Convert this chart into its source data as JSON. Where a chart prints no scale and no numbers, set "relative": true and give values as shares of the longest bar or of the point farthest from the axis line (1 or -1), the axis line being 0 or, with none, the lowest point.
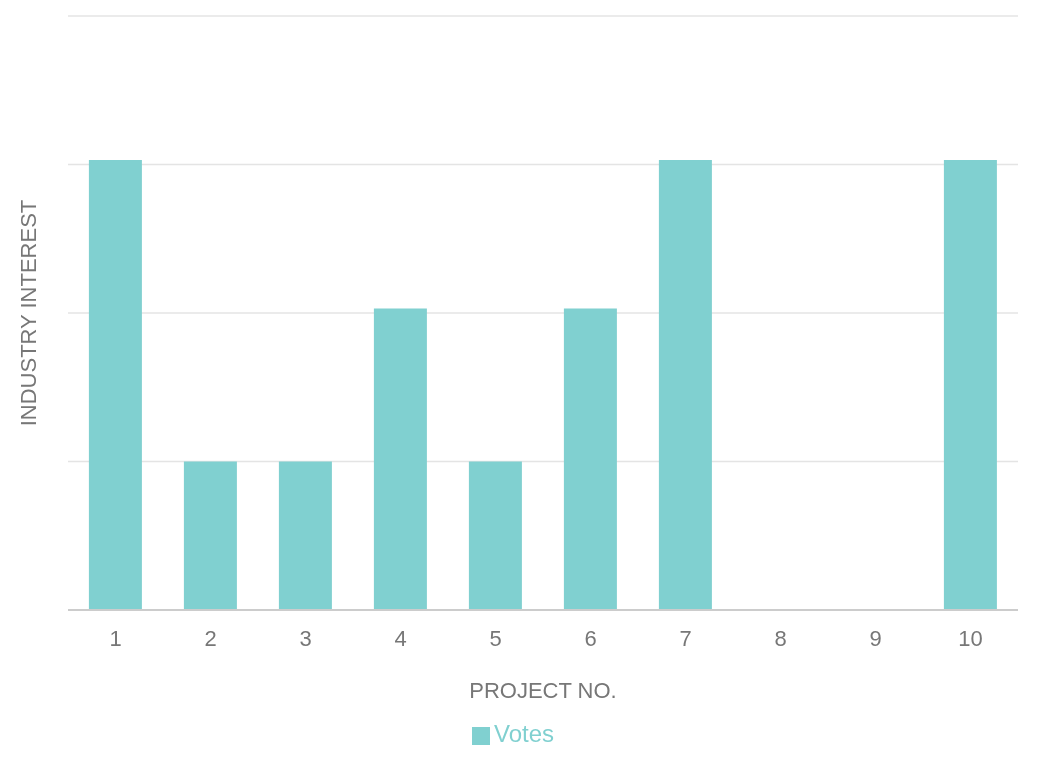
{
  "chart_data": {
    "type": "bar",
    "relative": true,
    "xlabel": "PROJECT NO.",
    "ylabel": "INDUSTRY INTEREST",
    "categories": [
      "1",
      "2",
      "3",
      "4",
      "5",
      "6",
      "7",
      "8",
      "9",
      "10"
    ],
    "series": [
      {
        "name": "Votes",
        "color": "#80d0d0",
        "values": [
          1,
          0.33,
          0.33,
          0.67,
          0.33,
          0.67,
          1,
          0,
          0,
          1
        ]
      }
    ],
    "grid": "y",
    "legend": "bottom"
  }
}
